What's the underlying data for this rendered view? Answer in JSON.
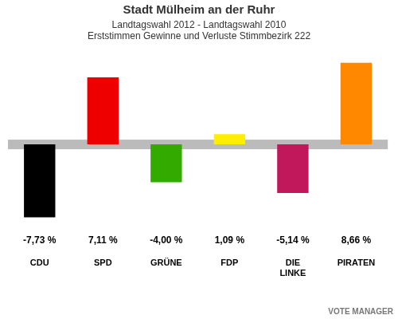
{
  "chart_data": {
    "type": "bar",
    "title": "Stadt Mülheim an der Ruhr",
    "subtitle": [
      "Landtagswahl 2012 - Landtagswahl 2010",
      "Erststimmen Gewinne und Verluste Stimmbezirk 222"
    ],
    "categories": [
      "CDU",
      "SPD",
      "GRÜNE",
      "FDP",
      "DIE LINKE",
      "PIRATEN"
    ],
    "values": [
      -7.73,
      7.11,
      -4.0,
      1.09,
      -5.14,
      8.66
    ],
    "value_labels": [
      "-7,73 %",
      "7,11 %",
      "-4,00 %",
      "1,09 %",
      "-5,14 %",
      "8,66 %"
    ],
    "colors": [
      "#000000",
      "#ee0000",
      "#33aa00",
      "#ffee00",
      "#c0185a",
      "#ff8800"
    ],
    "ylim": [
      -9,
      10
    ],
    "grid": false,
    "data_labels": true,
    "tick_labels": "x",
    "annotations": [
      "VOTE MANAGER"
    ]
  }
}
